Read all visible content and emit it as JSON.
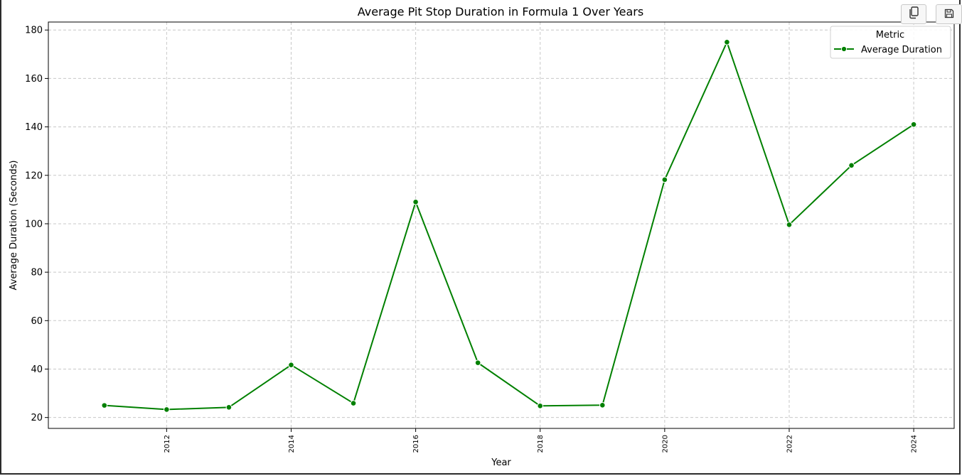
{
  "toolbar": {
    "copy_icon": "copy-icon",
    "save_icon": "save-icon"
  },
  "colors": {
    "line": "#008000",
    "grid": "#c8c8c8",
    "axis": "#000000"
  },
  "chart_data": {
    "type": "line",
    "title": "Average Pit Stop Duration in Formula 1 Over Years",
    "xlabel": "Year",
    "ylabel": "Average Duration (Seconds)",
    "x": [
      2011,
      2012,
      2013,
      2014,
      2015,
      2016,
      2017,
      2018,
      2019,
      2020,
      2021,
      2022,
      2023,
      2024
    ],
    "series": [
      {
        "name": "Average Duration",
        "values": [
          25.0,
          23.3,
          24.2,
          41.7,
          25.9,
          109.0,
          42.6,
          24.8,
          25.1,
          118.2,
          175.0,
          99.6,
          124.1,
          141.0
        ],
        "color": "#008000",
        "marker": "circle"
      }
    ],
    "xticks": [
      "2012",
      "2014",
      "2016",
      "2018",
      "2020",
      "2022",
      "2024"
    ],
    "yticks": [
      "20",
      "40",
      "60",
      "80",
      "100",
      "120",
      "140",
      "160",
      "180"
    ],
    "xlim": [
      2010.1,
      2024.65
    ],
    "ylim": [
      15.5,
      183.3
    ],
    "grid": true,
    "legend": {
      "title": "Metric",
      "placement": "top-right"
    }
  }
}
